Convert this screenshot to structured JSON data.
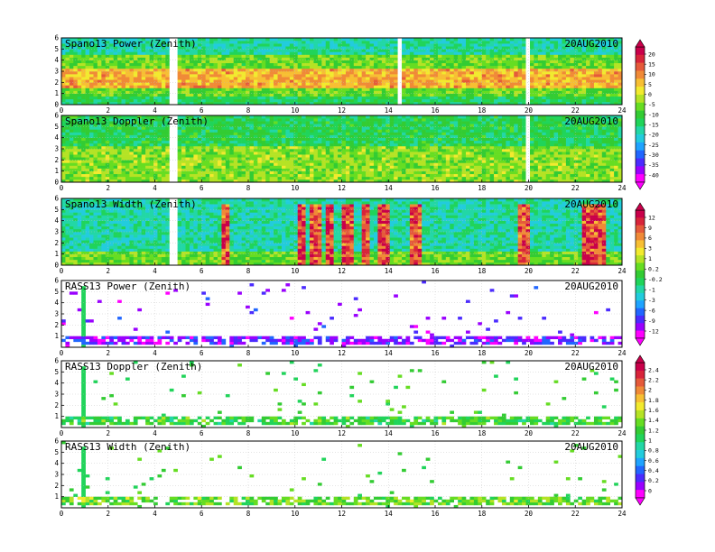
{
  "colors": {
    "cmap": [
      "#ff00ff",
      "#9a00ff",
      "#4b2bff",
      "#2166ff",
      "#1fa3ff",
      "#22ccdd",
      "#22d7a6",
      "#20d45a",
      "#33cc33",
      "#66dd22",
      "#b5e325",
      "#f2ea2e",
      "#f7bf33",
      "#f08a37",
      "#e55a3a",
      "#d8243a",
      "#c9004a"
    ],
    "missing": "#ffffff",
    "frame": "#000000",
    "grid": "#bbbbbb"
  },
  "colorbars": [
    {
      "labels": [
        "20",
        "15",
        "10",
        "5",
        "0",
        "-5",
        "-10",
        "-15",
        "-20",
        "-25",
        "-30",
        "-35",
        "-40"
      ]
    },
    {
      "labels": [
        "12",
        "9",
        "6",
        "3",
        "1",
        "0.2",
        "-0.2",
        "-1",
        "-3",
        "-6",
        "-9",
        "-12"
      ]
    },
    {
      "labels": [
        "2.4",
        "2.2",
        "2",
        "1.8",
        "1.6",
        "1.4",
        "1.2",
        "1",
        "0.8",
        "0.6",
        "0.4",
        "0.2",
        "0"
      ]
    }
  ],
  "chart_data": [
    {
      "type": "heatmap",
      "title": "Spano13 Power (Zenith)",
      "date": "20AUG2010",
      "xlim": [
        0,
        24
      ],
      "ylim": [
        0,
        6
      ],
      "xticks": [
        "0",
        "2",
        "4",
        "6",
        "8",
        "10",
        "12",
        "14",
        "16",
        "18",
        "20",
        "22",
        "24"
      ],
      "yticks": [
        "0",
        "1",
        "2",
        "3",
        "4",
        "5",
        "6"
      ],
      "grid": true,
      "colorbar": 0,
      "style": "band",
      "bands": [
        [
          0.2,
          0.2,
          0.55
        ],
        [
          0.7,
          4.6,
          0.55
        ],
        [
          1.6,
          3.2,
          0.75
        ],
        [
          4.6,
          6.0,
          0.38
        ]
      ],
      "bursts_x": [],
      "missing_x": [
        4.8,
        14.5,
        19.9
      ]
    },
    {
      "type": "heatmap",
      "title": "Spano13 Doppler (Zenith)",
      "date": "20AUG2010",
      "xlim": [
        0,
        24
      ],
      "ylim": [
        0,
        6
      ],
      "xticks": [
        "0",
        "2",
        "4",
        "6",
        "8",
        "10",
        "12",
        "14",
        "16",
        "18",
        "20",
        "22",
        "24"
      ],
      "yticks": [
        "0",
        "1",
        "2",
        "3",
        "4",
        "5",
        "6"
      ],
      "grid": true,
      "colorbar": 0,
      "style": "band",
      "bands": [
        [
          0.0,
          3.2,
          0.58
        ],
        [
          3.2,
          6.0,
          0.46
        ]
      ],
      "bursts_x": [],
      "missing_x": [
        4.8,
        19.9
      ]
    },
    {
      "type": "heatmap",
      "title": "Spano13 Width (Zenith)",
      "date": "20AUG2010",
      "xlim": [
        0,
        24
      ],
      "ylim": [
        0,
        6
      ],
      "xticks": [
        "0",
        "2",
        "4",
        "6",
        "8",
        "10",
        "12",
        "14",
        "16",
        "18",
        "20",
        "22",
        "24"
      ],
      "yticks": [
        "0",
        "1",
        "2",
        "3",
        "4",
        "5",
        "6"
      ],
      "grid": true,
      "colorbar": 1,
      "style": "band",
      "bands": [
        [
          0.0,
          1.2,
          0.55
        ],
        [
          1.2,
          6.0,
          0.38
        ]
      ],
      "bursts_x": [
        7.0,
        10.3,
        10.9,
        11.5,
        12.3,
        13.0,
        13.8,
        15.2,
        19.8,
        22.5,
        23.1
      ],
      "missing_x": [
        4.8
      ]
    },
    {
      "type": "heatmap",
      "title": "RASS13 Power (Zenith)",
      "date": "20AUG2010",
      "xlim": [
        0,
        24
      ],
      "ylim": [
        0,
        6
      ],
      "xticks": [
        "0",
        "2",
        "4",
        "6",
        "8",
        "10",
        "12",
        "14",
        "16",
        "18",
        "20",
        "22",
        "24"
      ],
      "yticks": [
        "1",
        "2",
        "3",
        "4",
        "5",
        "6"
      ],
      "grid": true,
      "colorbar": 1,
      "style": "sparse",
      "bands": [
        [
          0.3,
          1.0,
          0.12
        ]
      ],
      "bursts_x": [
        0.9
      ],
      "missing_x": []
    },
    {
      "type": "heatmap",
      "title": "RASS13 Doppler (Zenith)",
      "date": "20AUG2010",
      "xlim": [
        0,
        24
      ],
      "ylim": [
        0,
        6
      ],
      "xticks": [
        "0",
        "2",
        "4",
        "6",
        "8",
        "10",
        "12",
        "14",
        "16",
        "18",
        "20",
        "22",
        "24"
      ],
      "yticks": [
        "1",
        "2",
        "3",
        "4",
        "5",
        "6"
      ],
      "grid": true,
      "colorbar": 2,
      "style": "sparse",
      "bands": [
        [
          0.3,
          1.0,
          0.5
        ]
      ],
      "bursts_x": [
        0.9
      ],
      "missing_x": []
    },
    {
      "type": "heatmap",
      "title": "RASS13 Width (Zenith)",
      "date": "20AUG2010",
      "xlim": [
        0,
        24
      ],
      "ylim": [
        0,
        6
      ],
      "xticks": [
        "0",
        "2",
        "4",
        "6",
        "8",
        "10",
        "12",
        "14",
        "16",
        "18",
        "20",
        "22",
        "24"
      ],
      "yticks": [
        "1",
        "2",
        "3",
        "4",
        "5",
        "6"
      ],
      "grid": true,
      "colorbar": 2,
      "style": "sparse",
      "bands": [
        [
          0.3,
          1.0,
          0.55
        ]
      ],
      "bursts_x": [
        0.9
      ],
      "missing_x": []
    }
  ]
}
